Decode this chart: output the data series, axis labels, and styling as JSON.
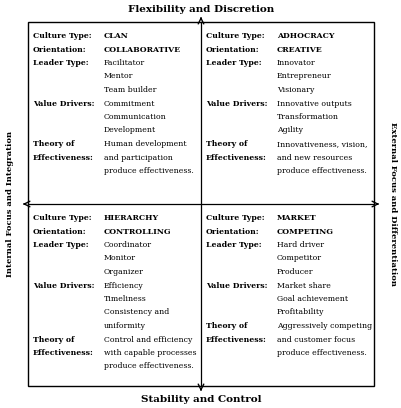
{
  "title_top": "Flexibility and Discretion",
  "title_bottom": "Stability and Control",
  "title_left": "Internal Focus and Integration",
  "title_right": "External Focus and Differentiation",
  "quadrants": {
    "top_left": {
      "rows": [
        {
          "label": "Culture Type:",
          "value": "CLAN",
          "label_bold": true,
          "value_bold": true
        },
        {
          "label": "Orientation:",
          "value": "COLLABORATIVE",
          "label_bold": true,
          "value_bold": true
        },
        {
          "label": "Leader Type:",
          "value": "Facilitator",
          "label_bold": true,
          "value_bold": false
        },
        {
          "label": "",
          "value": "Mentor",
          "label_bold": false,
          "value_bold": false
        },
        {
          "label": "",
          "value": "Team builder",
          "label_bold": false,
          "value_bold": false
        },
        {
          "label": "Value Drivers:",
          "value": "Commitment",
          "label_bold": true,
          "value_bold": false
        },
        {
          "label": "",
          "value": "Communication",
          "label_bold": false,
          "value_bold": false
        },
        {
          "label": "",
          "value": "Development",
          "label_bold": false,
          "value_bold": false
        },
        {
          "label": "Theory of",
          "value": "Human development",
          "label_bold": true,
          "value_bold": false
        },
        {
          "label": "Effectiveness:",
          "value": "and participation",
          "label_bold": true,
          "value_bold": false
        },
        {
          "label": "",
          "value": "produce effectiveness.",
          "label_bold": false,
          "value_bold": false
        }
      ]
    },
    "top_right": {
      "rows": [
        {
          "label": "Culture Type:",
          "value": "ADHOCRACY",
          "label_bold": true,
          "value_bold": true
        },
        {
          "label": "Orientation:",
          "value": "CREATIVE",
          "label_bold": true,
          "value_bold": true
        },
        {
          "label": "Leader Type:",
          "value": "Innovator",
          "label_bold": true,
          "value_bold": false
        },
        {
          "label": "",
          "value": "Entrepreneur",
          "label_bold": false,
          "value_bold": false
        },
        {
          "label": "",
          "value": "Visionary",
          "label_bold": false,
          "value_bold": false
        },
        {
          "label": "Value Drivers:",
          "value": "Innovative outputs",
          "label_bold": true,
          "value_bold": false
        },
        {
          "label": "",
          "value": "Transformation",
          "label_bold": false,
          "value_bold": false
        },
        {
          "label": "",
          "value": "Agility",
          "label_bold": false,
          "value_bold": false
        },
        {
          "label": "Theory of",
          "value": "Innovativeness, vision,",
          "label_bold": true,
          "value_bold": false
        },
        {
          "label": "Effectiveness:",
          "value": "and new resources",
          "label_bold": true,
          "value_bold": false
        },
        {
          "label": "",
          "value": "produce effectiveness.",
          "label_bold": false,
          "value_bold": false
        }
      ]
    },
    "bottom_left": {
      "rows": [
        {
          "label": "Culture Type:",
          "value": "HIERARCHY",
          "label_bold": true,
          "value_bold": true
        },
        {
          "label": "Orientation:",
          "value": "CONTROLLING",
          "label_bold": true,
          "value_bold": true
        },
        {
          "label": "Leader Type:",
          "value": "Coordinator",
          "label_bold": true,
          "value_bold": false
        },
        {
          "label": "",
          "value": "Monitor",
          "label_bold": false,
          "value_bold": false
        },
        {
          "label": "",
          "value": "Organizer",
          "label_bold": false,
          "value_bold": false
        },
        {
          "label": "Value Drivers:",
          "value": "Efficiency",
          "label_bold": true,
          "value_bold": false
        },
        {
          "label": "",
          "value": "Timeliness",
          "label_bold": false,
          "value_bold": false
        },
        {
          "label": "",
          "value": "Consistency and",
          "label_bold": false,
          "value_bold": false
        },
        {
          "label": "",
          "value": "uniformity",
          "label_bold": false,
          "value_bold": false
        },
        {
          "label": "Theory of",
          "value": "Control and efficiency",
          "label_bold": true,
          "value_bold": false
        },
        {
          "label": "Effectiveness:",
          "value": "with capable processes",
          "label_bold": true,
          "value_bold": false
        },
        {
          "label": "",
          "value": "produce effectiveness.",
          "label_bold": false,
          "value_bold": false
        }
      ]
    },
    "bottom_right": {
      "rows": [
        {
          "label": "Culture Type:",
          "value": "MARKET",
          "label_bold": true,
          "value_bold": true
        },
        {
          "label": "Orientation:",
          "value": "COMPETING",
          "label_bold": true,
          "value_bold": true
        },
        {
          "label": "Leader Type:",
          "value": "Hard driver",
          "label_bold": true,
          "value_bold": false
        },
        {
          "label": "",
          "value": "Competitor",
          "label_bold": false,
          "value_bold": false
        },
        {
          "label": "",
          "value": "Producer",
          "label_bold": false,
          "value_bold": false
        },
        {
          "label": "Value Drivers:",
          "value": "Market share",
          "label_bold": true,
          "value_bold": false
        },
        {
          "label": "",
          "value": "Goal achievement",
          "label_bold": false,
          "value_bold": false
        },
        {
          "label": "",
          "value": "Profitability",
          "label_bold": false,
          "value_bold": false
        },
        {
          "label": "Theory of",
          "value": "Aggressively competing",
          "label_bold": true,
          "value_bold": false
        },
        {
          "label": "Effectiveness:",
          "value": "and customer focus",
          "label_bold": true,
          "value_bold": false
        },
        {
          "label": "",
          "value": "produce effectiveness.",
          "label_bold": false,
          "value_bold": false
        }
      ]
    }
  }
}
